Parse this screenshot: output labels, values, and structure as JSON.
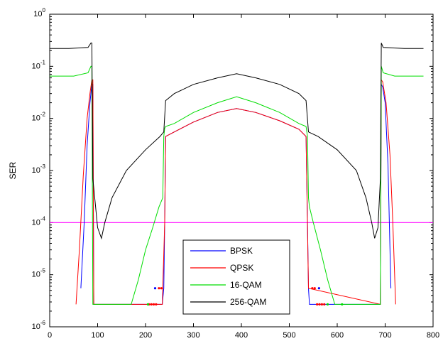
{
  "chart_data": {
    "type": "line",
    "title": "",
    "xlabel": "",
    "ylabel": "SER",
    "xlim": [
      0,
      800
    ],
    "ylim": [
      1e-06,
      1
    ],
    "yscale": "log",
    "grid": false,
    "legend_position": "bottom-center",
    "x_ticks": [
      "0",
      "100",
      "200",
      "300",
      "400",
      "500",
      "600",
      "700",
      "800"
    ],
    "y_ticks": [
      {
        "base": "10",
        "exp": "0"
      },
      {
        "base": "10",
        "exp": "-1"
      },
      {
        "base": "10",
        "exp": "-2"
      },
      {
        "base": "10",
        "exp": "-3"
      },
      {
        "base": "10",
        "exp": "-4"
      },
      {
        "base": "10",
        "exp": "-5"
      },
      {
        "base": "10",
        "exp": "-6"
      }
    ],
    "reference_line": {
      "y": 0.0001,
      "color": "#ff00ff"
    },
    "series": [
      {
        "name": "BPSK",
        "color": "#0000ff",
        "x": [
          65,
          72,
          78,
          84,
          88,
          90,
          92,
          235,
          238,
          240,
          242,
          260,
          300,
          350,
          390,
          430,
          480,
          520,
          535,
          538,
          540,
          542,
          690,
          692,
          695,
          700,
          706,
          712
        ],
        "y": [
          5.5e-06,
          0.0001,
          0.003,
          0.02,
          0.045,
          0.045,
          2.7e-06,
          2.7e-06,
          5.5e-06,
          0.0001,
          0.0045,
          0.0055,
          0.0085,
          0.013,
          0.0155,
          0.013,
          0.009,
          0.0062,
          0.0045,
          0.0001,
          5.5e-06,
          2.7e-06,
          2.7e-06,
          0.045,
          0.04,
          0.02,
          0.0013,
          5.5e-06
        ]
      },
      {
        "name": "QPSK",
        "color": "#ff0000",
        "x": [
          55,
          62,
          70,
          78,
          84,
          88,
          90,
          92,
          235,
          240,
          242,
          260,
          300,
          350,
          390,
          430,
          480,
          520,
          535,
          540,
          690,
          692,
          695,
          702,
          710,
          716,
          722
        ],
        "y": [
          2.7e-06,
          3e-05,
          0.0008,
          0.01,
          0.03,
          0.055,
          0.055,
          2.7e-06,
          2.7e-06,
          0.0001,
          0.0045,
          0.0055,
          0.0085,
          0.013,
          0.0155,
          0.013,
          0.009,
          0.0062,
          0.0045,
          5.5e-06,
          2.7e-06,
          0.055,
          0.05,
          0.02,
          0.002,
          0.0001,
          2.7e-06
        ]
      },
      {
        "name": "16-QAM",
        "color": "#00dd00",
        "x": [
          0,
          20,
          50,
          80,
          86,
          88,
          90,
          92,
          170,
          185,
          200,
          215,
          228,
          236,
          238,
          240,
          242,
          260,
          300,
          350,
          390,
          430,
          480,
          520,
          535,
          538,
          540,
          542,
          550,
          565,
          580,
          595,
          612,
          690,
          692,
          696,
          720,
          760,
          780
        ],
        "y": [
          0.065,
          0.065,
          0.065,
          0.075,
          0.1,
          0.1,
          2.7e-06,
          2.7e-06,
          2.7e-06,
          8e-06,
          3e-05,
          8e-05,
          0.0002,
          0.0003,
          0.0045,
          0.0065,
          0.007,
          0.008,
          0.013,
          0.02,
          0.026,
          0.02,
          0.013,
          0.008,
          0.007,
          0.0045,
          0.0003,
          0.0002,
          0.0001,
          3e-05,
          8e-06,
          2.7e-06,
          2.7e-06,
          2.7e-06,
          0.1,
          0.075,
          0.065,
          0.065,
          0.065
        ]
      },
      {
        "name": "256-QAM",
        "color": "#000000",
        "x": [
          0,
          40,
          80,
          86,
          88,
          90,
          100,
          108,
          115,
          130,
          160,
          200,
          230,
          238,
          242,
          260,
          300,
          350,
          390,
          430,
          480,
          520,
          535,
          540,
          560,
          600,
          640,
          660,
          672,
          678,
          685,
          690,
          692,
          696,
          740,
          780
        ],
        "y": [
          0.22,
          0.22,
          0.23,
          0.28,
          0.28,
          0.0007,
          8e-05,
          5e-05,
          0.0001,
          0.0003,
          0.001,
          0.0025,
          0.0045,
          0.0055,
          0.022,
          0.03,
          0.045,
          0.06,
          0.072,
          0.06,
          0.045,
          0.03,
          0.022,
          0.0055,
          0.0045,
          0.0025,
          0.001,
          0.0003,
          0.0001,
          5e-05,
          8e-05,
          0.0007,
          0.28,
          0.23,
          0.22,
          0.22
        ]
      }
    ],
    "markers": [
      {
        "series": "BPSK",
        "x": 220,
        "y": 5.5e-06
      },
      {
        "series": "BPSK",
        "x": 562,
        "y": 5.5e-06
      },
      {
        "series": "QPSK",
        "x": 207,
        "y": 2.7e-06
      },
      {
        "series": "QPSK",
        "x": 212,
        "y": 2.7e-06
      },
      {
        "series": "QPSK",
        "x": 217,
        "y": 2.7e-06
      },
      {
        "series": "QPSK",
        "x": 222,
        "y": 2.7e-06
      },
      {
        "series": "QPSK",
        "x": 228,
        "y": 5.5e-06
      },
      {
        "series": "QPSK",
        "x": 233,
        "y": 5.5e-06
      },
      {
        "series": "QPSK",
        "x": 548,
        "y": 5.5e-06
      },
      {
        "series": "QPSK",
        "x": 553,
        "y": 5.5e-06
      },
      {
        "series": "QPSK",
        "x": 558,
        "y": 2.7e-06
      },
      {
        "series": "QPSK",
        "x": 563,
        "y": 2.7e-06
      },
      {
        "series": "QPSK",
        "x": 568,
        "y": 2.7e-06
      },
      {
        "series": "QPSK",
        "x": 573,
        "y": 2.7e-06
      },
      {
        "series": "16-QAM",
        "x": 205,
        "y": 2.7e-06
      },
      {
        "series": "16-QAM",
        "x": 580,
        "y": 2.7e-06
      },
      {
        "series": "16-QAM",
        "x": 610,
        "y": 2.7e-06
      }
    ]
  }
}
